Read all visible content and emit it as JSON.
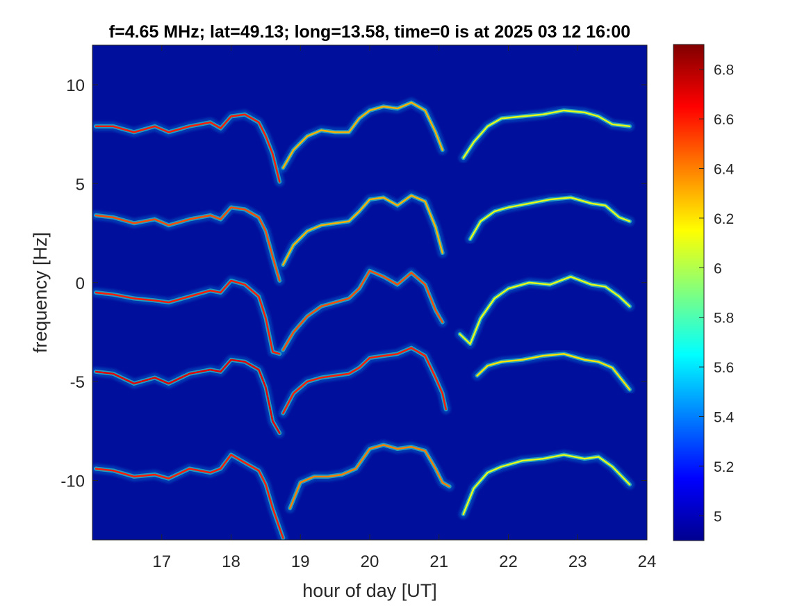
{
  "chart_data": {
    "type": "heatmap",
    "title": "f=4.65 MHz;  lat=49.13; long=13.58, time=0 is at 2025 03 12 16:00",
    "xlabel": "hour of day [UT]",
    "ylabel": "frequency [Hz]",
    "xlim": [
      16.0,
      24.0
    ],
    "ylim": [
      -13.0,
      12.0
    ],
    "x_ticks": [
      17,
      18,
      19,
      20,
      21,
      22,
      23,
      24
    ],
    "x_tick_labels": [
      "17",
      "18",
      "19",
      "20",
      "21",
      "22",
      "23",
      "24"
    ],
    "y_ticks": [
      10,
      5,
      0,
      -5,
      -10
    ],
    "y_tick_labels": [
      "10",
      "5",
      "0",
      "-5",
      "-10"
    ],
    "colormap": "jet",
    "background_color": "#000f9c",
    "colorbar": {
      "clim": [
        4.9,
        6.9
      ],
      "ticks": [
        6.8,
        6.6,
        6.4,
        6.2,
        6.0,
        5.8,
        5.6,
        5.4,
        5.2,
        5.0
      ],
      "tick_labels": [
        "6.8",
        "6.6",
        "6.4",
        "6.2",
        "6",
        "5.8",
        "5.6",
        "5.4",
        "5.2",
        "5"
      ]
    },
    "traces": [
      {
        "offset": 8.0,
        "segments": [
          {
            "x": [
              16.05,
              16.3,
              16.6,
              16.9,
              17.1,
              17.4,
              17.7,
              17.85,
              18.0,
              18.2,
              18.4,
              18.5,
              18.6,
              18.7
            ],
            "y": [
              7.9,
              7.9,
              7.6,
              7.9,
              7.6,
              7.9,
              8.1,
              7.8,
              8.4,
              8.5,
              8.1,
              7.4,
              6.5,
              5.1
            ],
            "strength": 0.85
          },
          {
            "x": [
              18.75,
              18.9,
              19.1,
              19.3,
              19.5,
              19.7,
              19.85,
              20.0,
              20.2,
              20.4,
              20.6,
              20.8,
              20.95,
              21.05
            ],
            "y": [
              5.8,
              6.7,
              7.4,
              7.7,
              7.6,
              7.6,
              8.3,
              8.7,
              8.9,
              8.8,
              9.1,
              8.7,
              7.6,
              6.7
            ],
            "strength": 0.7
          },
          {
            "x": [
              21.35,
              21.5,
              21.7,
              21.9,
              22.2,
              22.5,
              22.8,
              23.1,
              23.3,
              23.5,
              23.75
            ],
            "y": [
              6.3,
              7.1,
              7.9,
              8.3,
              8.4,
              8.5,
              8.7,
              8.6,
              8.4,
              8.0,
              7.9
            ],
            "strength": 0.6
          }
        ]
      },
      {
        "offset": 3.4,
        "segments": [
          {
            "x": [
              16.05,
              16.3,
              16.6,
              16.9,
              17.1,
              17.4,
              17.7,
              17.85,
              18.0,
              18.2,
              18.4,
              18.5,
              18.6,
              18.7
            ],
            "y": [
              3.4,
              3.3,
              3.0,
              3.2,
              2.9,
              3.2,
              3.4,
              3.2,
              3.8,
              3.7,
              3.3,
              2.6,
              1.3,
              0.1
            ],
            "strength": 0.8
          },
          {
            "x": [
              18.75,
              18.9,
              19.1,
              19.3,
              19.5,
              19.7,
              19.85,
              20.0,
              20.2,
              20.4,
              20.6,
              20.8,
              20.95,
              21.05
            ],
            "y": [
              0.9,
              1.9,
              2.6,
              2.9,
              3.0,
              3.1,
              3.6,
              4.2,
              4.3,
              3.9,
              4.4,
              4.1,
              2.8,
              1.5
            ],
            "strength": 0.7
          },
          {
            "x": [
              21.45,
              21.6,
              21.8,
              22.0,
              22.3,
              22.6,
              22.9,
              23.2,
              23.4,
              23.6,
              23.75
            ],
            "y": [
              2.2,
              3.1,
              3.6,
              3.8,
              4.0,
              4.2,
              4.3,
              4.0,
              3.9,
              3.3,
              3.1
            ],
            "strength": 0.6
          }
        ]
      },
      {
        "offset": -0.5,
        "segments": [
          {
            "x": [
              16.05,
              16.3,
              16.6,
              16.9,
              17.1,
              17.4,
              17.7,
              17.85,
              18.0,
              18.2,
              18.4,
              18.5,
              18.6,
              18.7
            ],
            "y": [
              -0.5,
              -0.6,
              -0.8,
              -0.9,
              -1.0,
              -0.7,
              -0.4,
              -0.5,
              0.1,
              -0.1,
              -0.7,
              -1.8,
              -3.5,
              -3.6
            ],
            "strength": 0.85
          },
          {
            "x": [
              18.75,
              18.9,
              19.1,
              19.3,
              19.5,
              19.7,
              19.85,
              20.0,
              20.2,
              20.4,
              20.6,
              20.8,
              20.95,
              21.05
            ],
            "y": [
              -3.4,
              -2.5,
              -1.7,
              -1.2,
              -1.0,
              -0.8,
              -0.3,
              0.6,
              0.3,
              -0.1,
              0.5,
              -0.1,
              -1.4,
              -2.0
            ],
            "strength": 0.8
          },
          {
            "x": [
              21.3,
              21.45,
              21.6,
              21.8,
              22.0,
              22.3,
              22.6,
              22.9,
              23.2,
              23.4,
              23.6,
              23.75
            ],
            "y": [
              -2.6,
              -3.1,
              -1.8,
              -0.8,
              -0.3,
              0.0,
              -0.1,
              0.3,
              -0.1,
              -0.2,
              -0.7,
              -1.2
            ],
            "strength": 0.6
          }
        ]
      },
      {
        "offset": -4.5,
        "segments": [
          {
            "x": [
              16.05,
              16.3,
              16.6,
              16.9,
              17.1,
              17.4,
              17.7,
              17.85,
              18.0,
              18.2,
              18.4,
              18.5,
              18.6,
              18.7
            ],
            "y": [
              -4.5,
              -4.6,
              -5.1,
              -4.8,
              -5.1,
              -4.6,
              -4.4,
              -4.5,
              -3.9,
              -4.0,
              -4.4,
              -5.3,
              -7.0,
              -7.6
            ],
            "strength": 0.9
          },
          {
            "x": [
              18.75,
              18.9,
              19.1,
              19.3,
              19.5,
              19.7,
              19.85,
              20.0,
              20.2,
              20.4,
              20.6,
              20.8,
              20.95,
              21.05,
              21.1
            ],
            "y": [
              -6.6,
              -5.6,
              -5.0,
              -4.8,
              -4.7,
              -4.6,
              -4.3,
              -3.8,
              -3.7,
              -3.6,
              -3.3,
              -3.7,
              -4.8,
              -5.6,
              -6.4
            ],
            "strength": 0.85
          },
          {
            "x": [
              21.55,
              21.7,
              21.9,
              22.2,
              22.5,
              22.8,
              23.1,
              23.3,
              23.5,
              23.75
            ],
            "y": [
              -4.7,
              -4.2,
              -4.0,
              -3.9,
              -3.7,
              -3.6,
              -3.9,
              -4.0,
              -4.3,
              -5.4
            ],
            "strength": 0.65
          }
        ]
      },
      {
        "offset": -9.4,
        "segments": [
          {
            "x": [
              16.05,
              16.3,
              16.6,
              16.9,
              17.1,
              17.4,
              17.7,
              17.85,
              18.0,
              18.2,
              18.4,
              18.5,
              18.6,
              18.75
            ],
            "y": [
              -9.4,
              -9.5,
              -9.8,
              -9.7,
              -9.9,
              -9.4,
              -9.6,
              -9.4,
              -8.7,
              -9.1,
              -9.5,
              -10.2,
              -11.4,
              -12.9
            ],
            "strength": 0.85
          },
          {
            "x": [
              18.85,
              19.0,
              19.2,
              19.4,
              19.6,
              19.8,
              20.0,
              20.2,
              20.4,
              20.6,
              20.8,
              20.95,
              21.05,
              21.15
            ],
            "y": [
              -11.4,
              -10.1,
              -9.8,
              -9.8,
              -9.7,
              -9.4,
              -8.4,
              -8.2,
              -8.4,
              -8.3,
              -8.5,
              -9.4,
              -10.1,
              -10.3
            ],
            "strength": 0.75
          },
          {
            "x": [
              21.35,
              21.5,
              21.7,
              21.9,
              22.2,
              22.5,
              22.8,
              23.1,
              23.3,
              23.5,
              23.75
            ],
            "y": [
              -11.7,
              -10.4,
              -9.6,
              -9.3,
              -9.0,
              -8.9,
              -8.7,
              -8.9,
              -8.8,
              -9.3,
              -10.2
            ],
            "strength": 0.6
          }
        ]
      }
    ]
  }
}
